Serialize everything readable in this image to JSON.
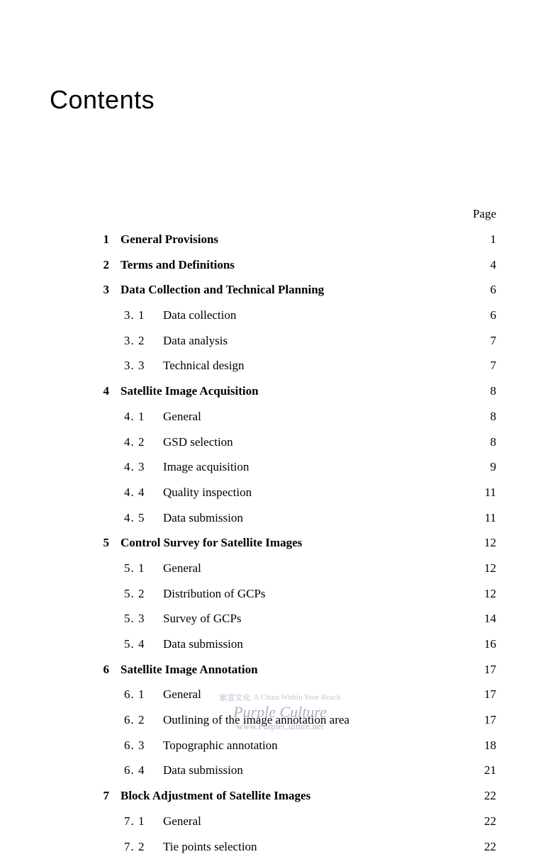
{
  "title": "Contents",
  "page_header": "Page",
  "chapters": [
    {
      "num": "1",
      "title": "General Provisions",
      "page": "1",
      "subs": []
    },
    {
      "num": "2",
      "title": "Terms and Definitions",
      "page": "4",
      "subs": []
    },
    {
      "num": "3",
      "title": "Data Collection and Technical Planning",
      "page": "6",
      "subs": [
        {
          "num": "3. 1",
          "title": "Data collection",
          "page": "6"
        },
        {
          "num": "3. 2",
          "title": "Data analysis",
          "page": "7"
        },
        {
          "num": "3. 3",
          "title": "Technical design",
          "page": "7"
        }
      ]
    },
    {
      "num": "4",
      "title": "Satellite Image Acquisition",
      "page": "8",
      "subs": [
        {
          "num": "4. 1",
          "title": "General",
          "page": "8"
        },
        {
          "num": "4. 2",
          "title": "GSD selection",
          "page": "8"
        },
        {
          "num": "4. 3",
          "title": "Image acquisition",
          "page": "9"
        },
        {
          "num": "4. 4",
          "title": "Quality inspection",
          "page": "11"
        },
        {
          "num": "4. 5",
          "title": "Data submission",
          "page": "11"
        }
      ]
    },
    {
      "num": "5",
      "title": "Control Survey for Satellite Images",
      "page": "12",
      "subs": [
        {
          "num": "5. 1",
          "title": "General",
          "page": "12"
        },
        {
          "num": "5. 2",
          "title": "Distribution of GCPs",
          "page": "12"
        },
        {
          "num": "5. 3",
          "title": "Survey of GCPs",
          "page": "14"
        },
        {
          "num": "5. 4",
          "title": "Data submission",
          "page": "16"
        }
      ]
    },
    {
      "num": "6",
      "title": "Satellite Image Annotation",
      "page": "17",
      "subs": [
        {
          "num": "6. 1",
          "title": "General",
          "page": "17"
        },
        {
          "num": "6. 2",
          "title": "Outlining of the image annotation area",
          "page": "17"
        },
        {
          "num": "6. 3",
          "title": "Topographic annotation",
          "page": "18"
        },
        {
          "num": "6. 4",
          "title": "Data submission",
          "page": "21"
        }
      ]
    },
    {
      "num": "7",
      "title": "Block Adjustment of Satellite Images",
      "page": "22",
      "subs": [
        {
          "num": "7. 1",
          "title": "General",
          "page": "22"
        },
        {
          "num": "7. 2",
          "title": "Tie points selection",
          "page": "22"
        }
      ]
    }
  ],
  "watermark": {
    "chars": "紫宣文化",
    "tagline": "A China Within Your Reach",
    "main": "Purple Culture",
    "url": "www.PurpleCulture.net"
  },
  "colors": {
    "text": "#000000",
    "background": "#ffffff",
    "watermark": "#a894bc"
  },
  "typography": {
    "title_font": "Arial",
    "title_size_pt": 27,
    "body_font": "Times New Roman",
    "body_size_pt": 13,
    "chap_weight": 700,
    "sub_weight": 400
  }
}
